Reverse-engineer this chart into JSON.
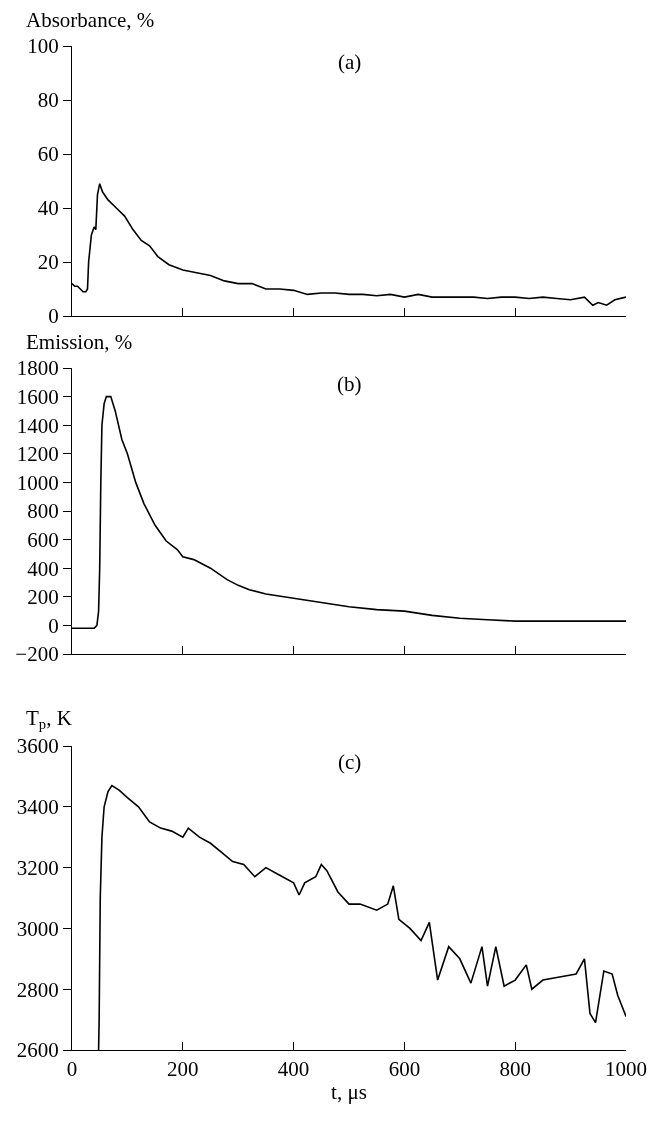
{
  "chart_data": [
    {
      "type": "line",
      "title": "(a)",
      "ylabel": "Absorbance, %",
      "tick_labels": "y",
      "xlim": [
        0,
        1000
      ],
      "xticks": [
        0,
        200,
        400,
        600,
        800,
        1000
      ],
      "ylim": [
        0,
        100
      ],
      "yticks": [
        0,
        20,
        40,
        60,
        80,
        100
      ],
      "x": [
        0,
        5,
        10,
        20,
        25,
        28,
        30,
        35,
        40,
        43,
        46,
        50,
        55,
        65,
        80,
        95,
        110,
        125,
        140,
        155,
        175,
        200,
        225,
        250,
        275,
        300,
        325,
        350,
        375,
        400,
        425,
        450,
        475,
        500,
        525,
        550,
        575,
        600,
        625,
        650,
        675,
        700,
        725,
        750,
        775,
        800,
        825,
        850,
        875,
        900,
        925,
        940,
        950,
        965,
        980,
        1000
      ],
      "series": [
        {
          "color": "#000000",
          "values": [
            12,
            11,
            11,
            9,
            9,
            10,
            20,
            30,
            33,
            32,
            45,
            49,
            46,
            43,
            40,
            37,
            32,
            28,
            26,
            22,
            19,
            17,
            16,
            15,
            13,
            12,
            12,
            10,
            10,
            9.5,
            8,
            8.5,
            8.5,
            8,
            8,
            7.5,
            8,
            7,
            8,
            7,
            7,
            7,
            7,
            6.5,
            7,
            7,
            6.5,
            7,
            6.5,
            6,
            7,
            4,
            5,
            4,
            6,
            7
          ]
        }
      ]
    },
    {
      "type": "line",
      "title": "(b)",
      "ylabel": "Emission, %",
      "tick_labels": "y",
      "xlim": [
        0,
        1000
      ],
      "xticks": [
        0,
        200,
        400,
        600,
        800,
        1000
      ],
      "ylim": [
        -200,
        1800
      ],
      "yticks": [
        {
          "value": -200,
          "label": "−200"
        },
        0,
        200,
        400,
        600,
        800,
        1000,
        1200,
        1400,
        1600,
        1800
      ],
      "x": [
        0,
        20,
        40,
        45,
        48,
        50,
        52,
        54,
        58,
        62,
        70,
        78,
        90,
        100,
        115,
        130,
        150,
        170,
        190,
        200,
        220,
        250,
        280,
        300,
        320,
        350,
        400,
        450,
        500,
        550,
        600,
        650,
        700,
        750,
        800,
        900,
        1000
      ],
      "series": [
        {
          "color": "#000000",
          "values": [
            -20,
            -20,
            -20,
            0,
            100,
            400,
            1000,
            1400,
            1550,
            1600,
            1600,
            1500,
            1300,
            1200,
            1000,
            850,
            700,
            590,
            530,
            480,
            460,
            400,
            320,
            280,
            250,
            220,
            190,
            160,
            130,
            110,
            100,
            70,
            50,
            40,
            30,
            30,
            30
          ]
        }
      ]
    },
    {
      "type": "line",
      "title": "(c)",
      "ylabel": "T$_{p}$, K",
      "xlabel": "t, μs",
      "xlim": [
        0,
        1000
      ],
      "xticks": [
        0,
        200,
        400,
        600,
        800,
        1000
      ],
      "ylim": [
        2600,
        3600
      ],
      "yticks": [
        2600,
        2800,
        3000,
        3200,
        3400,
        3600
      ],
      "x": [
        48,
        49,
        51,
        54,
        58,
        65,
        72,
        85,
        100,
        120,
        140,
        160,
        180,
        200,
        210,
        230,
        250,
        270,
        290,
        310,
        330,
        350,
        370,
        400,
        410,
        420,
        440,
        450,
        460,
        480,
        500,
        520,
        550,
        570,
        580,
        590,
        610,
        630,
        645,
        660,
        680,
        700,
        720,
        740,
        750,
        765,
        780,
        800,
        820,
        830,
        850,
        880,
        910,
        925,
        935,
        945,
        960,
        975,
        985,
        1000
      ],
      "series": [
        {
          "color": "#000000",
          "values": [
            2600,
            2700,
            3100,
            3300,
            3400,
            3450,
            3470,
            3455,
            3430,
            3400,
            3350,
            3330,
            3320,
            3300,
            3330,
            3300,
            3280,
            3250,
            3220,
            3210,
            3170,
            3200,
            3180,
            3150,
            3110,
            3150,
            3170,
            3210,
            3190,
            3120,
            3080,
            3080,
            3060,
            3080,
            3140,
            3030,
            3000,
            2960,
            3020,
            2830,
            2940,
            2900,
            2820,
            2940,
            2810,
            2940,
            2810,
            2830,
            2880,
            2800,
            2830,
            2840,
            2850,
            2900,
            2720,
            2690,
            2860,
            2850,
            2780,
            2710
          ]
        }
      ]
    }
  ]
}
